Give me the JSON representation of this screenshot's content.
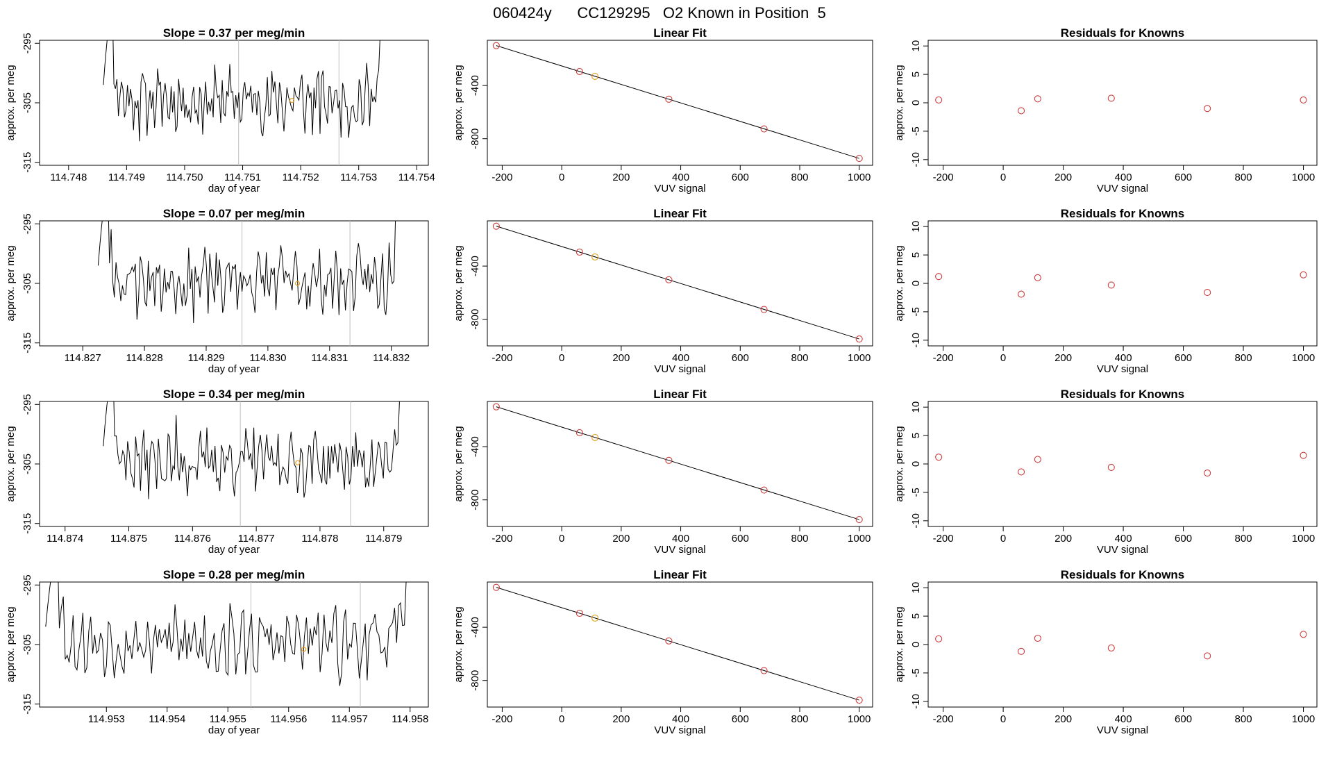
{
  "page": {
    "title": "060424y      CC129295   O2 Known in Position  5",
    "trace_color": "#000000",
    "known_color": "#cd3b3b",
    "highlight_color": "#e8a020",
    "vline_color": "#bfbfbf"
  },
  "chart_data": [
    {
      "type": "line",
      "row": 0,
      "col": 0,
      "title": "Slope =  0.37  per meg/min",
      "xlabel": "day of year",
      "ylabel": "approx. per meg",
      "xlim": [
        114.7475,
        114.7542
      ],
      "ylim": [
        -315.5,
        -294.5
      ],
      "xticks": [
        114.748,
        114.749,
        114.75,
        114.751,
        114.752,
        114.753,
        114.754
      ],
      "xtick_labels": [
        "114.748",
        "114.749",
        "114.750",
        "114.751",
        "114.752",
        "114.753",
        "114.754"
      ],
      "yticks": [
        -295,
        -305,
        -315
      ],
      "ytick_labels": [
        "-295",
        "-305",
        "-315"
      ],
      "x_start": 114.7486,
      "x_end": 114.7535,
      "vlines": [
        114.75093,
        114.75266
      ],
      "marker": {
        "x": 114.75185,
        "y": -304.6
      },
      "seed": 11
    },
    {
      "type": "scatter",
      "row": 0,
      "col": 1,
      "title": "Linear Fit",
      "xlabel": "VUV signal",
      "ylabel": "approx. per meg",
      "xlim": [
        -250,
        1045
      ],
      "ylim": [
        -1000,
        -60
      ],
      "xticks": [
        -200,
        0,
        200,
        400,
        600,
        800,
        1000
      ],
      "xtick_labels": [
        "-200",
        "0",
        "200",
        "400",
        "600",
        "800",
        "1000"
      ],
      "yticks": [
        -400,
        -800
      ],
      "ytick_labels": [
        "-400",
        "-800"
      ],
      "line": {
        "x": [
          -220,
          1000
        ],
        "y": [
          -100,
          -948
        ]
      },
      "points": [
        {
          "x": -220,
          "y": -100,
          "known": true
        },
        {
          "x": 60,
          "y": -295,
          "known": true
        },
        {
          "x": 112,
          "y": -331,
          "known": false
        },
        {
          "x": 360,
          "y": -503,
          "known": true
        },
        {
          "x": 680,
          "y": -726,
          "known": true
        },
        {
          "x": 1000,
          "y": -948,
          "known": true
        }
      ]
    },
    {
      "type": "scatter",
      "row": 0,
      "col": 2,
      "title": "Residuals for Knowns",
      "xlabel": "VUV signal",
      "ylabel": "approx. per meg",
      "xlim": [
        -250,
        1045
      ],
      "ylim": [
        -11,
        11
      ],
      "xticks": [
        -200,
        0,
        200,
        400,
        600,
        800,
        1000
      ],
      "xtick_labels": [
        "-200",
        "0",
        "200",
        "400",
        "600",
        "800",
        "1000"
      ],
      "yticks": [
        10,
        5,
        0,
        -5,
        -10
      ],
      "ytick_labels": [
        "10",
        "5",
        "0",
        "-5",
        "-10"
      ],
      "points": [
        {
          "x": -215,
          "y": 0.5
        },
        {
          "x": 60,
          "y": -1.4
        },
        {
          "x": 115,
          "y": 0.7
        },
        {
          "x": 360,
          "y": 0.8
        },
        {
          "x": 680,
          "y": -1.0
        },
        {
          "x": 1000,
          "y": 0.5
        }
      ]
    },
    {
      "type": "line",
      "row": 1,
      "col": 0,
      "title": "Slope =  0.07  per meg/min",
      "xlabel": "day of year",
      "ylabel": "approx. per meg",
      "xlim": [
        114.8263,
        114.8326
      ],
      "ylim": [
        -315.5,
        -294.5
      ],
      "xticks": [
        114.827,
        114.828,
        114.829,
        114.83,
        114.831,
        114.832
      ],
      "xtick_labels": [
        "114.827",
        "114.828",
        "114.829",
        "114.830",
        "114.831",
        "114.832"
      ],
      "yticks": [
        -295,
        -305,
        -315
      ],
      "ytick_labels": [
        "-295",
        "-305",
        "-315"
      ],
      "x_start": 114.82725,
      "x_end": 114.8322,
      "vlines": [
        114.82958,
        114.83133
      ],
      "marker": {
        "x": 114.83048,
        "y": -305.0
      },
      "seed": 23
    },
    {
      "type": "scatter",
      "row": 1,
      "col": 1,
      "title": "Linear Fit",
      "xlabel": "VUV signal",
      "ylabel": "approx. per meg",
      "xlim": [
        -250,
        1045
      ],
      "ylim": [
        -1000,
        -60
      ],
      "xticks": [
        -200,
        0,
        200,
        400,
        600,
        800,
        1000
      ],
      "xtick_labels": [
        "-200",
        "0",
        "200",
        "400",
        "600",
        "800",
        "1000"
      ],
      "yticks": [
        -400,
        -800
      ],
      "ytick_labels": [
        "-400",
        "-800"
      ],
      "line": {
        "x": [
          -220,
          1000
        ],
        "y": [
          -100,
          -948
        ]
      },
      "points": [
        {
          "x": -220,
          "y": -100,
          "known": true
        },
        {
          "x": 60,
          "y": -295,
          "known": true
        },
        {
          "x": 112,
          "y": -331,
          "known": false
        },
        {
          "x": 360,
          "y": -503,
          "known": true
        },
        {
          "x": 680,
          "y": -726,
          "known": true
        },
        {
          "x": 1000,
          "y": -948,
          "known": true
        }
      ]
    },
    {
      "type": "scatter",
      "row": 1,
      "col": 2,
      "title": "Residuals for Knowns",
      "xlabel": "VUV signal",
      "ylabel": "approx. per meg",
      "xlim": [
        -250,
        1045
      ],
      "ylim": [
        -11,
        11
      ],
      "xticks": [
        -200,
        0,
        200,
        400,
        600,
        800,
        1000
      ],
      "xtick_labels": [
        "-200",
        "0",
        "200",
        "400",
        "600",
        "800",
        "1000"
      ],
      "yticks": [
        10,
        5,
        0,
        -5,
        -10
      ],
      "ytick_labels": [
        "10",
        "5",
        "0",
        "-5",
        "-10"
      ],
      "points": [
        {
          "x": -215,
          "y": 1.2
        },
        {
          "x": 60,
          "y": -1.9
        },
        {
          "x": 115,
          "y": 1.0
        },
        {
          "x": 360,
          "y": -0.3
        },
        {
          "x": 680,
          "y": -1.6
        },
        {
          "x": 1000,
          "y": 1.5
        }
      ]
    },
    {
      "type": "line",
      "row": 2,
      "col": 0,
      "title": "Slope =  0.34  per meg/min",
      "xlabel": "day of year",
      "ylabel": "approx. per meg",
      "xlim": [
        114.8736,
        114.8797
      ],
      "ylim": [
        -315.5,
        -294.5
      ],
      "xticks": [
        114.874,
        114.875,
        114.876,
        114.877,
        114.878,
        114.879
      ],
      "xtick_labels": [
        "114.874",
        "114.875",
        "114.876",
        "114.877",
        "114.878",
        "114.879"
      ],
      "yticks": [
        -295,
        -305,
        -315
      ],
      "ytick_labels": [
        "-295",
        "-305",
        "-315"
      ],
      "x_start": 114.8746,
      "x_end": 114.8794,
      "vlines": [
        114.87675,
        114.87848
      ],
      "marker": {
        "x": 114.87765,
        "y": -304.8
      },
      "seed": 37
    },
    {
      "type": "scatter",
      "row": 2,
      "col": 1,
      "title": "Linear Fit",
      "xlabel": "VUV signal",
      "ylabel": "approx. per meg",
      "xlim": [
        -250,
        1045
      ],
      "ylim": [
        -1000,
        -60
      ],
      "xticks": [
        -200,
        0,
        200,
        400,
        600,
        800,
        1000
      ],
      "xtick_labels": [
        "-200",
        "0",
        "200",
        "400",
        "600",
        "800",
        "1000"
      ],
      "yticks": [
        -400,
        -800
      ],
      "ytick_labels": [
        "-400",
        "-800"
      ],
      "line": {
        "x": [
          -220,
          1000
        ],
        "y": [
          -100,
          -948
        ]
      },
      "points": [
        {
          "x": -220,
          "y": -100,
          "known": true
        },
        {
          "x": 60,
          "y": -295,
          "known": true
        },
        {
          "x": 112,
          "y": -331,
          "known": false
        },
        {
          "x": 360,
          "y": -503,
          "known": true
        },
        {
          "x": 680,
          "y": -726,
          "known": true
        },
        {
          "x": 1000,
          "y": -948,
          "known": true
        }
      ]
    },
    {
      "type": "scatter",
      "row": 2,
      "col": 2,
      "title": "Residuals for Knowns",
      "xlabel": "VUV signal",
      "ylabel": "approx. per meg",
      "xlim": [
        -250,
        1045
      ],
      "ylim": [
        -11,
        11
      ],
      "xticks": [
        -200,
        0,
        200,
        400,
        600,
        800,
        1000
      ],
      "xtick_labels": [
        "-200",
        "0",
        "200",
        "400",
        "600",
        "800",
        "1000"
      ],
      "yticks": [
        10,
        5,
        0,
        -5,
        -10
      ],
      "ytick_labels": [
        "10",
        "5",
        "0",
        "-5",
        "-10"
      ],
      "points": [
        {
          "x": -215,
          "y": 1.2
        },
        {
          "x": 60,
          "y": -1.4
        },
        {
          "x": 115,
          "y": 0.8
        },
        {
          "x": 360,
          "y": -0.6
        },
        {
          "x": 680,
          "y": -1.6
        },
        {
          "x": 1000,
          "y": 1.5
        }
      ]
    },
    {
      "type": "line",
      "row": 3,
      "col": 0,
      "title": "Slope =  0.28  per meg/min",
      "xlabel": "day of year",
      "ylabel": "approx. per meg",
      "xlim": [
        114.9519,
        114.9583
      ],
      "ylim": [
        -315.5,
        -294.5
      ],
      "xticks": [
        114.953,
        114.954,
        114.955,
        114.956,
        114.957,
        114.958
      ],
      "xtick_labels": [
        "114.953",
        "114.954",
        "114.955",
        "114.956",
        "114.957",
        "114.958"
      ],
      "yticks": [
        -295,
        -305,
        -315
      ],
      "ytick_labels": [
        "-295",
        "-305",
        "-315"
      ],
      "x_start": 114.952,
      "x_end": 114.9581,
      "vlines": [
        114.95538,
        114.95718
      ],
      "marker": {
        "x": 114.95625,
        "y": -305.8
      },
      "seed": 53
    },
    {
      "type": "scatter",
      "row": 3,
      "col": 1,
      "title": "Linear Fit",
      "xlabel": "VUV signal",
      "ylabel": "approx. per meg",
      "xlim": [
        -250,
        1045
      ],
      "ylim": [
        -1000,
        -60
      ],
      "xticks": [
        -200,
        0,
        200,
        400,
        600,
        800,
        1000
      ],
      "xtick_labels": [
        "-200",
        "0",
        "200",
        "400",
        "600",
        "800",
        "1000"
      ],
      "yticks": [
        -400,
        -800
      ],
      "ytick_labels": [
        "-400",
        "-800"
      ],
      "line": {
        "x": [
          -220,
          1000
        ],
        "y": [
          -100,
          -948
        ]
      },
      "points": [
        {
          "x": -220,
          "y": -100,
          "known": true
        },
        {
          "x": 60,
          "y": -295,
          "known": true
        },
        {
          "x": 112,
          "y": -331,
          "known": false
        },
        {
          "x": 360,
          "y": -503,
          "known": true
        },
        {
          "x": 680,
          "y": -726,
          "known": true
        },
        {
          "x": 1000,
          "y": -948,
          "known": true
        }
      ]
    },
    {
      "type": "scatter",
      "row": 3,
      "col": 2,
      "title": "Residuals for Knowns",
      "xlabel": "VUV signal",
      "ylabel": "approx. per meg",
      "xlim": [
        -250,
        1045
      ],
      "ylim": [
        -11,
        11
      ],
      "xticks": [
        -200,
        0,
        200,
        400,
        600,
        800,
        1000
      ],
      "xtick_labels": [
        "-200",
        "0",
        "200",
        "400",
        "600",
        "800",
        "1000"
      ],
      "yticks": [
        10,
        5,
        0,
        -5,
        -10
      ],
      "ytick_labels": [
        "10",
        "5",
        "0",
        "-5",
        "-10"
      ],
      "points": [
        {
          "x": -215,
          "y": 1.0
        },
        {
          "x": 60,
          "y": -1.2
        },
        {
          "x": 115,
          "y": 1.1
        },
        {
          "x": 360,
          "y": -0.6
        },
        {
          "x": 680,
          "y": -2.0
        },
        {
          "x": 1000,
          "y": 1.8
        }
      ]
    }
  ]
}
